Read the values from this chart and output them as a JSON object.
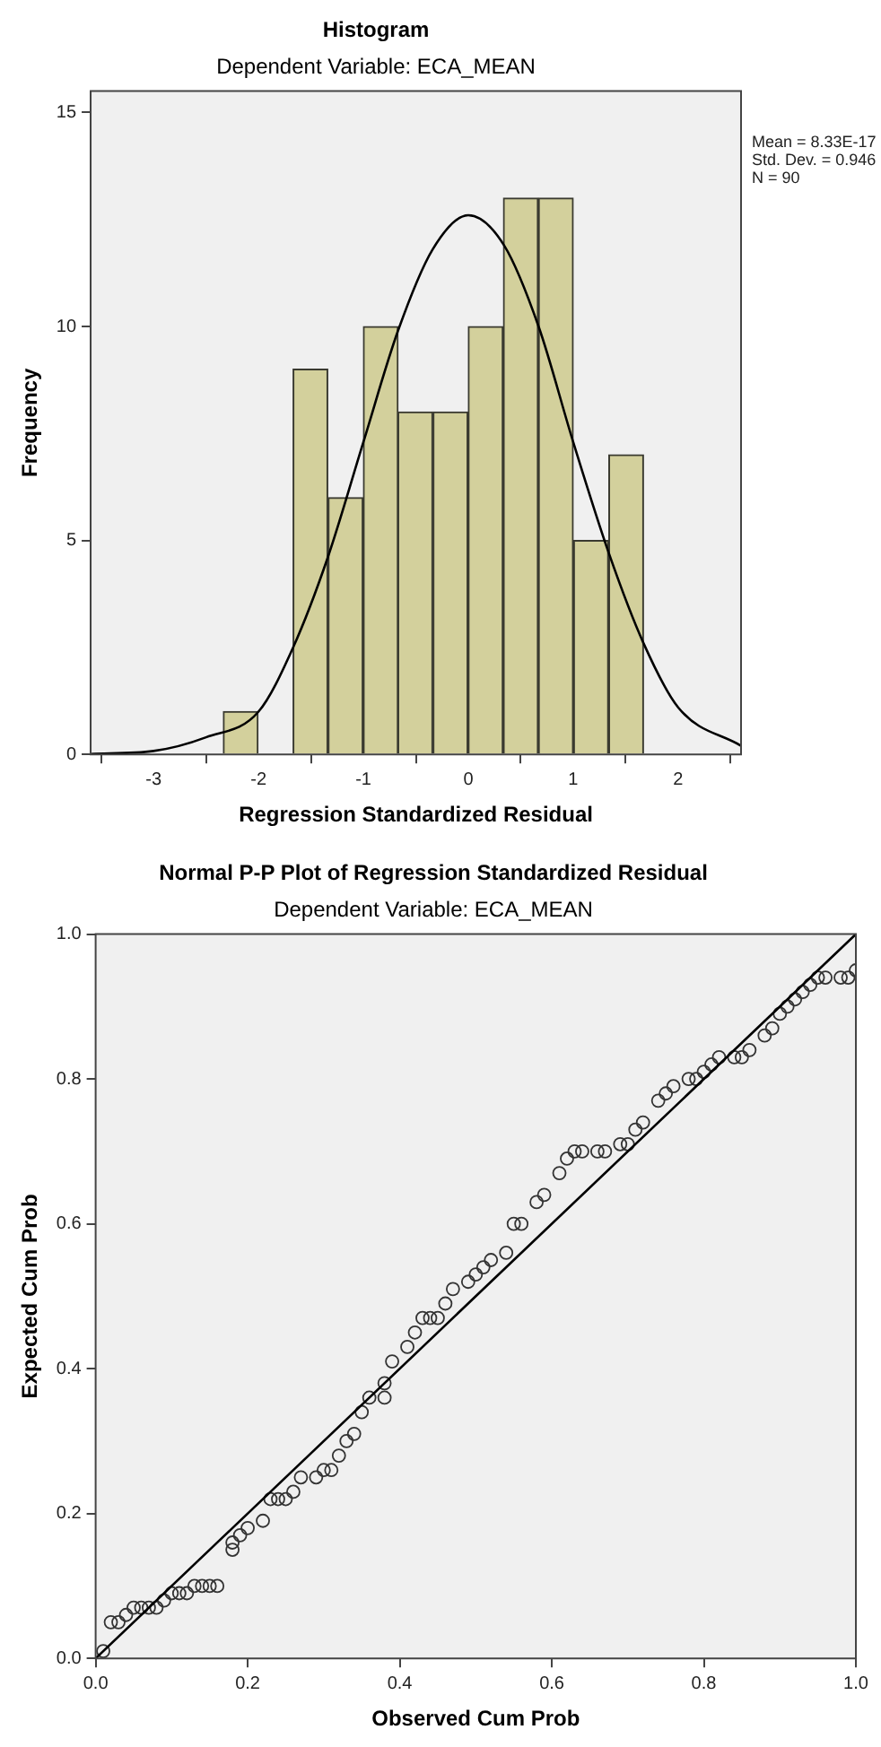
{
  "chart_data": [
    {
      "type": "histogram",
      "title": "Histogram",
      "subtitle": "Dependent Variable: ECA_MEAN",
      "xlabel": "Regression Standardized Residual",
      "ylabel": "Frequency",
      "color": "#d3d09c",
      "bins": [
        -2.34,
        -2.0,
        -1.67,
        -1.34,
        -1.0,
        -0.67,
        -0.34,
        0,
        0.33,
        0.67,
        1.0,
        1.34,
        1.67
      ],
      "values": [
        1,
        0,
        9,
        6,
        10,
        8,
        8,
        10,
        13,
        13,
        5,
        7
      ],
      "series": [
        {
          "type": "line",
          "color": "#000000",
          "x": [
            -3.6,
            -3,
            -2.5,
            -2,
            -1.67,
            -1.34,
            -1,
            -0.67,
            -0.34,
            0,
            0.34,
            0.67,
            1,
            1.34,
            1.67,
            2,
            2.6
          ],
          "values": [
            0.01,
            0.08,
            0.4,
            1.0,
            2.5,
            4.6,
            7.3,
            9.9,
            11.8,
            12.6,
            11.9,
            10,
            7.3,
            4.7,
            2.6,
            1.1,
            0.2
          ]
        }
      ],
      "xlim": [
        -3.6,
        2.6
      ],
      "xticks": [
        -3,
        -2,
        -1,
        0,
        1,
        2
      ],
      "ylim": [
        0,
        15.5
      ],
      "yticks": [
        0,
        5,
        10,
        15
      ],
      "annotations": [
        "Mean = 8.33E-17",
        "Std. Dev. = 0.946",
        "N = 90"
      ]
    },
    {
      "type": "scatter",
      "title": "Normal P-P Plot of Regression Standardized Residual",
      "subtitle": "Dependent Variable: ECA_MEAN",
      "xlabel": "Observed Cum Prob",
      "ylabel": "Expected Cum Prob",
      "series": [
        {
          "type": "scatter",
          "color": "#333333",
          "marker": "circle",
          "x": [
            0.01,
            0.02,
            0.03,
            0.04,
            0.05,
            0.06,
            0.07,
            0.08,
            0.09,
            0.1,
            0.11,
            0.12,
            0.13,
            0.14,
            0.15,
            0.16,
            0.18,
            0.18,
            0.19,
            0.2,
            0.22,
            0.23,
            0.24,
            0.25,
            0.26,
            0.27,
            0.29,
            0.3,
            0.31,
            0.32,
            0.33,
            0.34,
            0.35,
            0.36,
            0.38,
            0.38,
            0.39,
            0.41,
            0.42,
            0.43,
            0.44,
            0.45,
            0.46,
            0.47,
            0.49,
            0.5,
            0.51,
            0.52,
            0.54,
            0.55,
            0.56,
            0.58,
            0.59,
            0.61,
            0.62,
            0.63,
            0.64,
            0.66,
            0.67,
            0.69,
            0.7,
            0.71,
            0.72,
            0.74,
            0.75,
            0.76,
            0.78,
            0.79,
            0.8,
            0.81,
            0.82,
            0.84,
            0.85,
            0.86,
            0.88,
            0.89,
            0.9,
            0.91,
            0.92,
            0.93,
            0.94,
            0.95,
            0.96,
            0.98,
            0.99,
            1.0
          ],
          "values": [
            0.01,
            0.05,
            0.05,
            0.06,
            0.07,
            0.07,
            0.07,
            0.07,
            0.08,
            0.09,
            0.09,
            0.09,
            0.1,
            0.1,
            0.1,
            0.1,
            0.15,
            0.16,
            0.17,
            0.18,
            0.19,
            0.22,
            0.22,
            0.22,
            0.23,
            0.25,
            0.25,
            0.26,
            0.26,
            0.28,
            0.3,
            0.31,
            0.34,
            0.36,
            0.36,
            0.38,
            0.41,
            0.43,
            0.45,
            0.47,
            0.47,
            0.47,
            0.49,
            0.51,
            0.52,
            0.53,
            0.54,
            0.55,
            0.56,
            0.6,
            0.6,
            0.63,
            0.64,
            0.67,
            0.69,
            0.7,
            0.7,
            0.7,
            0.7,
            0.71,
            0.71,
            0.73,
            0.74,
            0.77,
            0.78,
            0.79,
            0.8,
            0.8,
            0.81,
            0.82,
            0.83,
            0.83,
            0.83,
            0.84,
            0.86,
            0.87,
            0.89,
            0.9,
            0.91,
            0.92,
            0.93,
            0.94,
            0.94,
            0.94,
            0.94,
            0.95
          ]
        },
        {
          "type": "line",
          "color": "#000000",
          "x": [
            0,
            1
          ],
          "values": [
            0,
            1
          ]
        }
      ],
      "xlim": [
        0,
        1
      ],
      "xticks": [
        {
          "value": 0,
          "label": "0.0"
        },
        {
          "value": 0.2,
          "label": "0.2"
        },
        {
          "value": 0.4,
          "label": "0.4"
        },
        {
          "value": 0.6,
          "label": "0.6"
        },
        {
          "value": 0.8,
          "label": "0.8"
        },
        {
          "value": 1,
          "label": "1.0"
        }
      ],
      "ylim": [
        0,
        1
      ],
      "yticks": [
        {
          "value": 0,
          "label": "0.0"
        },
        {
          "value": 0.2,
          "label": "0.2"
        },
        {
          "value": 0.4,
          "label": "0.4"
        },
        {
          "value": 0.6,
          "label": "0.6"
        },
        {
          "value": 0.8,
          "label": "0.8"
        },
        {
          "value": 1,
          "label": "1.0"
        }
      ]
    }
  ]
}
